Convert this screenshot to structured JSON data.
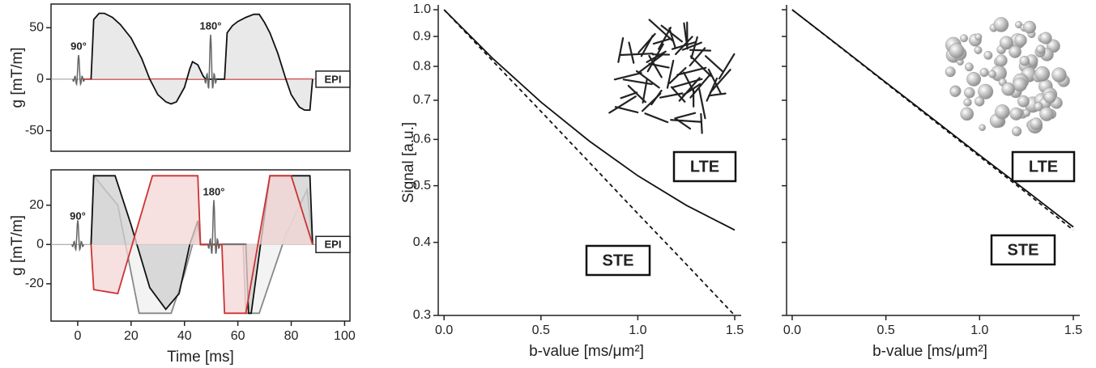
{
  "chart_data": [
    {
      "type": "line",
      "ylabel": "g [mT/m]",
      "xlim": [
        -10,
        102
      ],
      "ylim": [
        -70,
        73
      ],
      "yticks": [
        50,
        0,
        -50
      ],
      "annotations": [
        "90°",
        "180°",
        "EPI"
      ],
      "series": [
        {
          "color": "#cc3333",
          "fill": false,
          "x": [
            2,
            88
          ],
          "values": [
            0,
            0
          ]
        },
        {
          "color": "#111111",
          "fill": "#e2e2e2",
          "x": [
            5,
            6,
            8,
            10,
            13,
            16,
            20,
            24,
            27,
            30,
            33,
            35,
            37,
            40,
            42,
            43,
            45,
            47,
            48,
            55,
            56,
            58,
            60,
            63,
            66,
            68,
            70,
            72,
            75,
            78,
            80,
            83,
            85,
            87,
            88
          ],
          "values": [
            0,
            58,
            64,
            64,
            60,
            53,
            40,
            20,
            0,
            -15,
            -22,
            -24,
            -22,
            -8,
            10,
            17,
            14,
            3,
            0,
            0,
            45,
            52,
            56,
            60,
            63,
            63,
            55,
            45,
            25,
            0,
            -15,
            -27,
            -30,
            -30,
            0
          ]
        }
      ]
    },
    {
      "type": "line",
      "ylabel": "g [mT/m]",
      "xlabel": "Time [ms]",
      "xlim": [
        -10,
        102
      ],
      "ylim": [
        -39,
        38
      ],
      "yticks": [
        20,
        0,
        -20
      ],
      "xticks": [
        0,
        20,
        40,
        60,
        80,
        100
      ],
      "annotations": [
        "90°",
        "180°",
        "EPI"
      ],
      "series": [
        {
          "color": "#888888",
          "fill": "#efefef",
          "x": [
            5,
            6,
            15,
            23,
            35,
            40,
            45,
            46,
            62,
            63,
            68,
            78,
            86,
            88
          ],
          "values": [
            0,
            35,
            20,
            -35,
            -35,
            -15,
            10,
            0,
            0,
            -35,
            -35,
            5,
            28,
            0
          ]
        },
        {
          "color": "#111111",
          "fill": "#cfcfcf",
          "x": [
            5,
            6,
            14,
            20,
            27,
            33,
            38,
            42,
            45,
            46,
            63,
            64,
            65,
            72,
            87,
            88
          ],
          "values": [
            0,
            35,
            35,
            10,
            -22,
            -33,
            -25,
            0,
            12,
            0,
            0,
            -35,
            -35,
            35,
            35,
            0
          ]
        },
        {
          "color": "#cc3333",
          "fill": "#f3d6d6",
          "x": [
            5,
            6,
            15,
            28,
            42,
            45,
            46,
            54,
            55,
            63,
            72,
            80,
            88
          ],
          "values": [
            0,
            -23,
            -25,
            35,
            35,
            35,
            0,
            0,
            -35,
            -35,
            35,
            35,
            0
          ]
        }
      ]
    },
    {
      "type": "line",
      "log_y": true,
      "ylabel": "Signal [a.u.]",
      "xlabel": "b-value [ms/μm²]",
      "xlim": [
        -0.03,
        1.5
      ],
      "ylim": [
        0.3,
        1.0
      ],
      "yticks": [
        0.3,
        0.4,
        0.5,
        0.6,
        0.7,
        0.8,
        0.9,
        {
          "value": 1,
          "label": "1.0"
        }
      ],
      "xticks": [
        {
          "value": 0,
          "label": "0.0"
        },
        0.5,
        {
          "value": 1,
          "label": "1.0"
        },
        1.5
      ],
      "x": [
        0,
        0.25,
        0.5,
        0.75,
        1.0,
        1.25,
        1.5
      ],
      "series": [
        {
          "name": "LTE",
          "color": "#111111",
          "dash": false,
          "values": [
            1,
            0.826,
            0.695,
            0.596,
            0.52,
            0.463,
            0.42
          ]
        },
        {
          "name": "STE",
          "color": "#111111",
          "dash": true,
          "values": [
            1,
            0.818,
            0.67,
            0.548,
            0.448,
            0.367,
            0.3
          ]
        }
      ]
    },
    {
      "type": "line",
      "log_y": true,
      "xlabel": "b-value [ms/μm²]",
      "xlim": [
        -0.03,
        1.5
      ],
      "ylim": [
        0.3,
        1.0
      ],
      "xticks": [
        {
          "value": 0,
          "label": "0.0"
        },
        0.5,
        {
          "value": 1,
          "label": "1.0"
        },
        1.5
      ],
      "x": [
        0,
        0.25,
        0.5,
        0.75,
        1.0,
        1.25,
        1.5
      ],
      "series": [
        {
          "name": "LTE",
          "color": "#111111",
          "dash": false,
          "values": [
            1,
            0.867,
            0.751,
            0.651,
            0.564,
            0.49,
            0.425
          ]
        },
        {
          "name": "STE",
          "color": "#111111",
          "dash": true,
          "values": [
            1,
            0.866,
            0.749,
            0.648,
            0.561,
            0.486,
            0.42
          ]
        }
      ]
    }
  ]
}
